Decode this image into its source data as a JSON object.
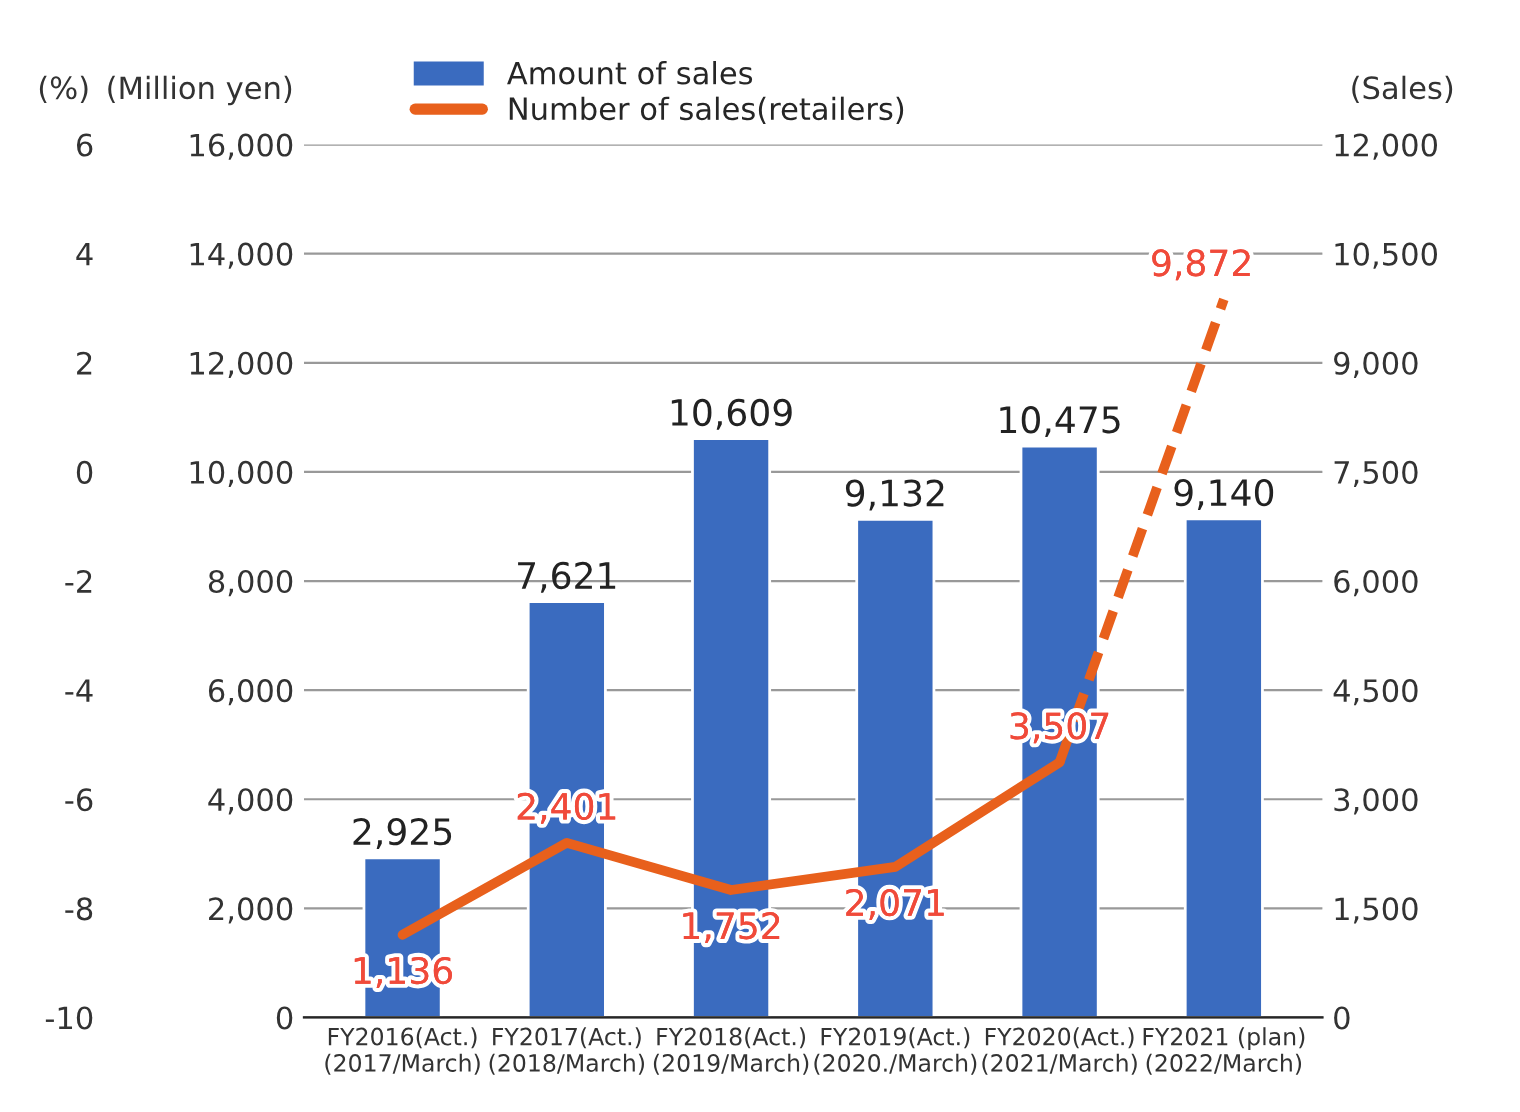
{
  "chart_data": {
    "type": "bar",
    "categories": [
      "FY2016(Act.)\n(2017/March)",
      "FY2017(Act.)\n(2018/March)",
      "FY2018(Act.)\n(2019/March)",
      "FY2019(Act.)\n(2020./March)",
      "FY2020(Act.)\n(2021/March)",
      "FY2021 (plan)\n(2022/March)"
    ],
    "ylabel": "(Million yen)",
    "y2label": "(Sales)",
    "y3label": "(%)",
    "series": [
      {
        "name": "Amount of sales",
        "color": "#3a6bbf",
        "values": [
          2925,
          7621,
          10609,
          9132,
          10475,
          9140
        ],
        "value_labels": [
          "2,925",
          "7,621",
          "10,609",
          "9,132",
          "10,475",
          "9,140"
        ]
      },
      {
        "name": "Number of sales(retailers)",
        "type": "line",
        "axis": "y2",
        "color": "#e8601c",
        "line_style": "solid",
        "values": [
          1136,
          2401,
          1752,
          2071,
          3507,
          null
        ],
        "value_labels": [
          "1,136",
          "2,401",
          "1,752",
          "2,071",
          "3,507",
          null
        ]
      },
      {
        "type": "line",
        "axis": "y2",
        "color": "#e8601c",
        "line_style": "dashed",
        "values": [
          null,
          null,
          null,
          null,
          3507,
          9872
        ],
        "value_labels": [
          null,
          null,
          null,
          null,
          null,
          "9,872"
        ]
      }
    ],
    "ylim": [
      0,
      16000
    ],
    "yticks": [
      {
        "value": 0,
        "label": "0"
      },
      {
        "value": 2000,
        "label": "2,000"
      },
      {
        "value": 4000,
        "label": "4,000"
      },
      {
        "value": 6000,
        "label": "6,000"
      },
      {
        "value": 8000,
        "label": "8,000"
      },
      {
        "value": 10000,
        "label": "10,000"
      },
      {
        "value": 12000,
        "label": "12,000"
      },
      {
        "value": 14000,
        "label": "14,000"
      },
      {
        "value": 16000,
        "label": "16,000"
      }
    ],
    "y2lim": [
      0,
      12000
    ],
    "y2ticks": [
      {
        "value": 0,
        "label": "0"
      },
      {
        "value": 1500,
        "label": "1,500"
      },
      {
        "value": 3000,
        "label": "3,000"
      },
      {
        "value": 4500,
        "label": "4,500"
      },
      {
        "value": 6000,
        "label": "6,000"
      },
      {
        "value": 7500,
        "label": "7,500"
      },
      {
        "value": 9000,
        "label": "9,000"
      },
      {
        "value": 10500,
        "label": "10,500"
      },
      {
        "value": 12000,
        "label": "12,000"
      }
    ],
    "y3lim": [
      -10,
      6
    ],
    "y3ticks": [
      -10,
      -8,
      -6,
      -4,
      -2,
      0,
      2,
      4,
      6
    ],
    "grid": "y",
    "legend": "top"
  }
}
